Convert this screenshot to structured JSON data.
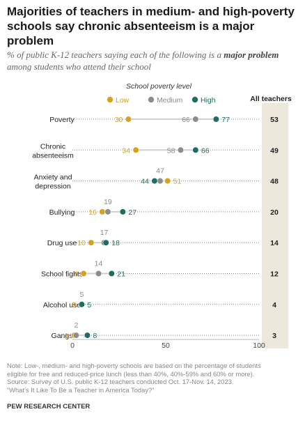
{
  "header": {
    "title": "Majorities of teachers in medium- and high-poverty schools say chronic absenteeism is a major problem",
    "subtitle_pre": "% of public K-12 teachers saying each of the following is a ",
    "subtitle_bold": "major problem",
    "subtitle_post": " among students who attend their school"
  },
  "colors": {
    "low": "#d6a21f",
    "medium": "#8c8c8c",
    "high": "#1d6d62",
    "total_column": "#ece9dc"
  },
  "chart_data": {
    "type": "dot",
    "legend_title": "School poverty level",
    "legend_position": "top",
    "total_header": "All teachers",
    "xlim": [
      0,
      100
    ],
    "x_ticks": [
      "0",
      "50",
      "100"
    ],
    "categories": [
      "Poverty",
      "Chronic absenteeism",
      "Anxiety and depression",
      "Bullying",
      "Drug use",
      "School fights",
      "Alcohol use",
      "Gangs"
    ],
    "category_labels": [
      [
        "Poverty"
      ],
      [
        "Chronic",
        "absenteeism"
      ],
      [
        "Anxiety and",
        "depression"
      ],
      [
        "Bullying"
      ],
      [
        "Drug use"
      ],
      [
        "School fights"
      ],
      [
        "Alcohol use"
      ],
      [
        "Gangs"
      ]
    ],
    "series": [
      {
        "name": "Low",
        "key": "low",
        "values": [
          30,
          34,
          51,
          16,
          10,
          6,
          5,
          1
        ]
      },
      {
        "name": "Medium",
        "key": "medium",
        "values": [
          66,
          58,
          47,
          19,
          17,
          14,
          5,
          2
        ]
      },
      {
        "name": "High",
        "key": "high",
        "values": [
          77,
          66,
          44,
          27,
          18,
          21,
          5,
          8
        ]
      }
    ],
    "all_teachers": [
      53,
      49,
      48,
      20,
      14,
      12,
      4,
      3
    ]
  },
  "notes": {
    "lines": [
      "Note: Low-, medium- and high-poverty schools are based on the percentage of students",
      "eligible for free and reduced-price lunch (less than 40%, 40%-59% and 60% or more).",
      "Source: Survey of U.S. public K-12 teachers conducted Oct. 17-Nov. 14, 2023.",
      "“What’s It Like To Be a Teacher in America Today?”"
    ],
    "org": "PEW RESEARCH CENTER"
  }
}
